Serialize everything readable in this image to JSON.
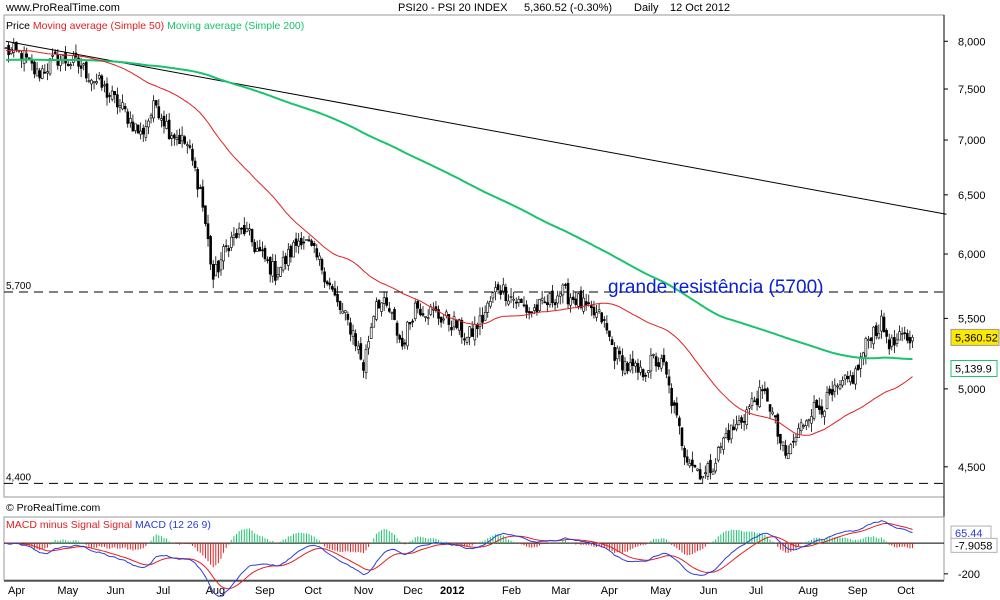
{
  "header": {
    "site": "www.ProRealTime.com",
    "instrument": "PSI20 - PSI 20 INDEX",
    "quote": "5,360.52 (-0.30%)",
    "period": "Daily",
    "date": "12 Oct 2012",
    "watermark": "© ProRealTime.com"
  },
  "price_legend": {
    "label": "Price",
    "ma50": "Moving average (Simple 50)",
    "ma200": "Moving average (Simple 200)"
  },
  "macd_legend": {
    "diff": "MACD minus Signal Signal",
    "macd": "MACD (12 26 9)"
  },
  "annotation": "grande resistência (5700)",
  "colors": {
    "candle_up": "#ffffff",
    "candle_down": "#000000",
    "ma50": "#e02020",
    "ma200": "#19c36b",
    "trendline": "#000000",
    "annotation": "#0a1fd6",
    "last_price_bg": "#ffe800",
    "macd_line": "#2a3dd6",
    "signal_line": "#e02020",
    "hist_pos": "#19c36b",
    "hist_neg": "#e02020"
  },
  "chart_data": {
    "type": "candlestick",
    "x_labels": [
      "Apr",
      "May",
      "Jun",
      "Jul",
      "Aug",
      "Sep",
      "Oct",
      "Nov",
      "Dec",
      "2012",
      "Feb",
      "Mar",
      "Apr",
      "May",
      "Jun",
      "Jul",
      "Aug",
      "Sep",
      "Oct"
    ],
    "price_axis": {
      "ticks": [
        "8,000",
        "7,500",
        "7,000",
        "6,500",
        "6,000",
        "5,500",
        "5,000",
        "4,500"
      ],
      "tick_values": [
        8000,
        7500,
        7000,
        6500,
        6000,
        5500,
        5000,
        4500
      ],
      "range": [
        4320,
        8090
      ]
    },
    "horizontal_levels": [
      {
        "label": "5,700",
        "value": 5700,
        "style": "dashed"
      },
      {
        "label": "4,400",
        "value": 4400,
        "style": "dashed"
      }
    ],
    "last_price": {
      "label": "5,360.52",
      "value": 5360.52
    },
    "ma200_last": {
      "label": "5,139.9",
      "value": 5139.9
    },
    "close_anchors": [
      [
        0,
        7900
      ],
      [
        6,
        7860
      ],
      [
        12,
        7650
      ],
      [
        20,
        7820
      ],
      [
        28,
        7750
      ],
      [
        36,
        7550
      ],
      [
        45,
        7300
      ],
      [
        52,
        7050
      ],
      [
        58,
        7350
      ],
      [
        63,
        7100
      ],
      [
        70,
        6950
      ],
      [
        75,
        6550
      ],
      [
        80,
        5800
      ],
      [
        86,
        6100
      ],
      [
        92,
        6200
      ],
      [
        98,
        6000
      ],
      [
        104,
        5850
      ],
      [
        108,
        5950
      ],
      [
        114,
        6150
      ],
      [
        122,
        5900
      ],
      [
        128,
        5600
      ],
      [
        134,
        5400
      ],
      [
        138,
        5150
      ],
      [
        143,
        5650
      ],
      [
        148,
        5550
      ],
      [
        153,
        5300
      ],
      [
        158,
        5600
      ],
      [
        164,
        5550
      ],
      [
        169,
        5500
      ],
      [
        174,
        5450
      ],
      [
        178,
        5350
      ],
      [
        184,
        5500
      ],
      [
        190,
        5750
      ],
      [
        196,
        5650
      ],
      [
        202,
        5550
      ],
      [
        208,
        5600
      ],
      [
        214,
        5700
      ],
      [
        220,
        5650
      ],
      [
        225,
        5550
      ],
      [
        230,
        5500
      ],
      [
        235,
        5250
      ],
      [
        240,
        5150
      ],
      [
        245,
        5100
      ],
      [
        250,
        5200
      ],
      [
        254,
        5150
      ],
      [
        258,
        4850
      ],
      [
        262,
        4600
      ],
      [
        266,
        4500
      ],
      [
        270,
        4450
      ],
      [
        274,
        4550
      ],
      [
        278,
        4700
      ],
      [
        282,
        4750
      ],
      [
        286,
        4850
      ],
      [
        290,
        4950
      ],
      [
        294,
        4950
      ],
      [
        298,
        4700
      ],
      [
        301,
        4550
      ],
      [
        304,
        4650
      ],
      [
        310,
        4850
      ],
      [
        316,
        4900
      ],
      [
        322,
        5000
      ],
      [
        328,
        5100
      ],
      [
        334,
        5400
      ],
      [
        338,
        5450
      ],
      [
        342,
        5300
      ],
      [
        346,
        5350
      ],
      [
        350,
        5360
      ]
    ],
    "trendline": {
      "start": [
        0,
        8000
      ],
      "end": [
        350,
        6340
      ]
    },
    "macd_axis": {
      "ticks": [
        "-200"
      ],
      "tick_values": [
        -200
      ],
      "range": [
        -240,
        170
      ],
      "macd_last": {
        "label": "65.44",
        "value": 65.44
      },
      "diff_last": {
        "label": "-7.9058",
        "value": -7.9058
      }
    }
  }
}
